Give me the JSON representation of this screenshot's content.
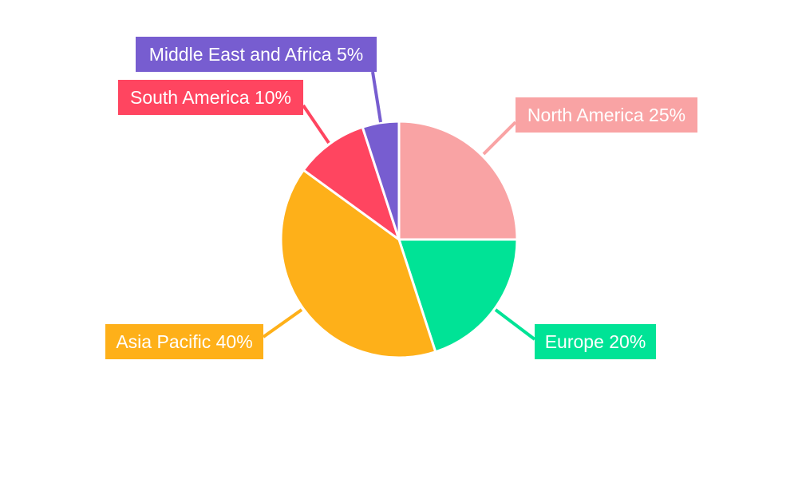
{
  "chart_data": {
    "type": "pie",
    "title": "",
    "start_angle_deg": 0,
    "direction": "clockwise",
    "slices": [
      {
        "label": "North America",
        "value": 25,
        "text": "North America 25%",
        "color": "#F9A3A4"
      },
      {
        "label": "Europe",
        "value": 20,
        "text": "Europe 20%",
        "color": "#00E396"
      },
      {
        "label": "Asia Pacific",
        "value": 40,
        "text": "Asia Pacific 40%",
        "color": "#FEB019"
      },
      {
        "label": "South America",
        "value": 10,
        "text": "South America 10%",
        "color": "#FF4560"
      },
      {
        "label": "Middle East and Africa",
        "value": 5,
        "text": "Middle East and Africa 5%",
        "color": "#775DD0"
      }
    ],
    "legend": "none",
    "labels": "outside-boxed"
  }
}
